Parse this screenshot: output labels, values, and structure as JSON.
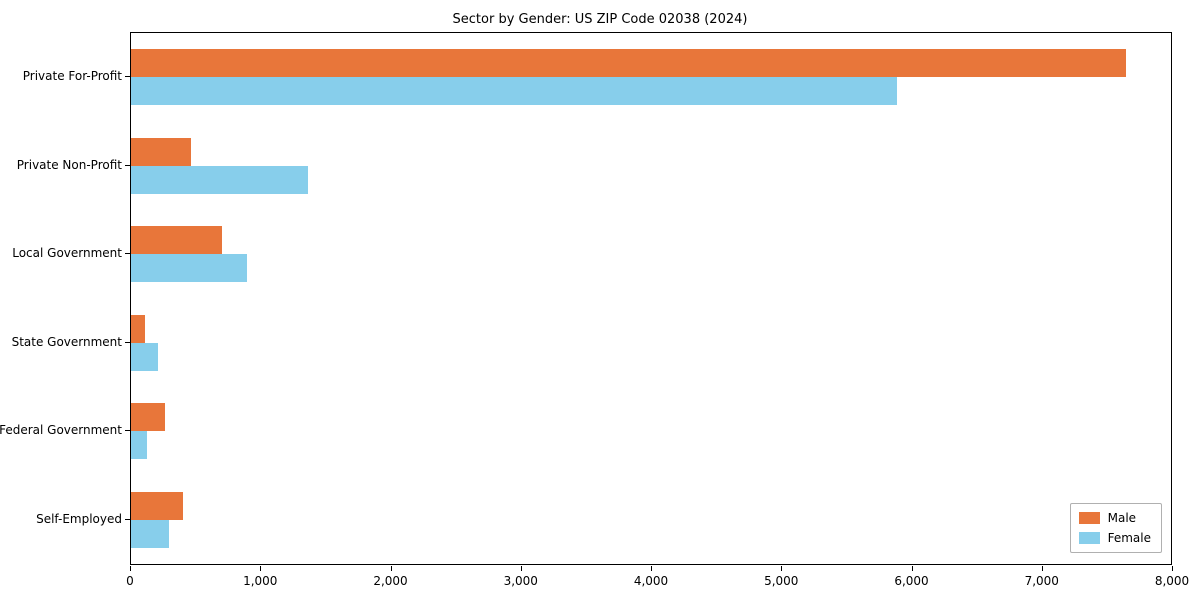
{
  "chart_data": {
    "type": "bar",
    "orientation": "horizontal",
    "title": "Sector by Gender: US ZIP Code 02038 (2024)",
    "categories": [
      "Private For-Profit",
      "Private Non-Profit",
      "Local Government",
      "State Government",
      "Federal Government",
      "Self-Employed"
    ],
    "series": [
      {
        "name": "Male",
        "color": "#e8763a",
        "values": [
          7650,
          460,
          700,
          110,
          260,
          400
        ]
      },
      {
        "name": "Female",
        "color": "#87ceeb",
        "values": [
          5890,
          1360,
          890,
          210,
          120,
          290
        ]
      }
    ],
    "xlabel": "",
    "ylabel": "",
    "xlim": [
      0,
      8000
    ],
    "x_ticks": [
      0,
      1000,
      2000,
      3000,
      4000,
      5000,
      6000,
      7000,
      8000
    ],
    "x_tick_labels": [
      "0",
      "1,000",
      "2,000",
      "3,000",
      "4,000",
      "5,000",
      "6,000",
      "7,000",
      "8,000"
    ],
    "grid": false,
    "legend_position": "lower right"
  }
}
